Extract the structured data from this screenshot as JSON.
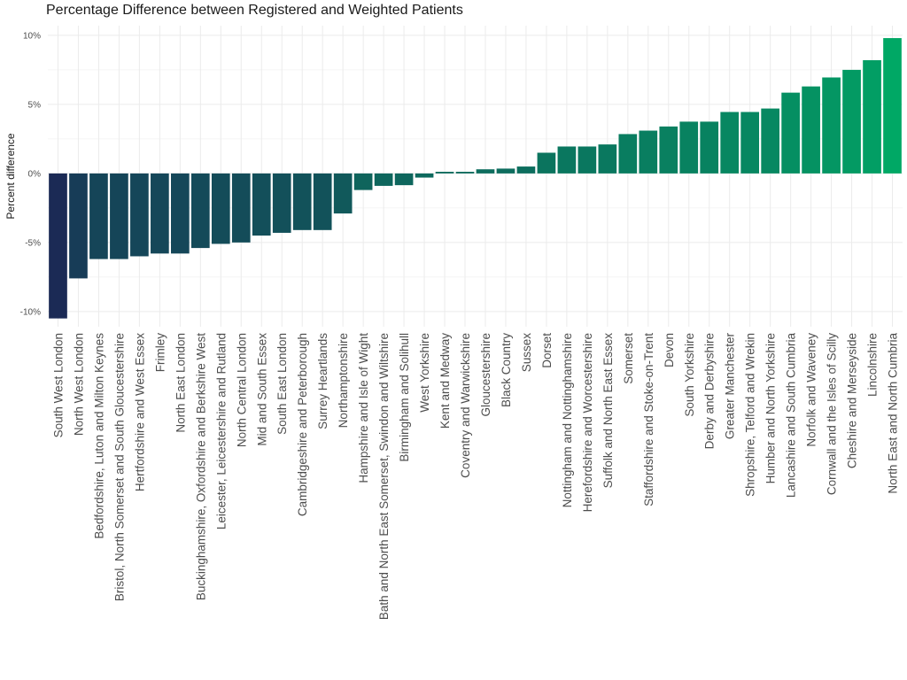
{
  "chart_data": {
    "type": "bar",
    "title": "Percentage Difference between Registered and Weighted Patients",
    "xlabel": "",
    "ylabel": "Percent difference",
    "ylim": [
      -11.1,
      10.7
    ],
    "yticks": [
      -10,
      -5,
      0,
      5,
      10
    ],
    "ytick_labels": [
      "-10%",
      "-5%",
      "0%",
      "5%",
      "10%"
    ],
    "grid": true,
    "legend": "none",
    "color_low": "#1b2a55",
    "color_high": "#00a865",
    "categories": [
      "South West London",
      "North West London",
      "Bedfordshire, Luton and Milton Keynes",
      "Bristol, North Somerset and South Gloucestershire",
      "Hertfordshire and West Essex",
      "Frimley",
      "North East London",
      "Buckinghamshire, Oxfordshire and Berkshire West",
      "Leicester, Leicestershire and Rutland",
      "North Central London",
      "Mid and South Essex",
      "South East London",
      "Cambridgeshire and Peterborough",
      "Surrey Heartlands",
      "Northamptonshire",
      "Hampshire and Isle of Wight",
      "Bath and North East Somerset, Swindon and Wiltshire",
      "Birmingham and Solihull",
      "West Yorkshire",
      "Kent and Medway",
      "Coventry and Warwickshire",
      "Gloucestershire",
      "Black Country",
      "Sussex",
      "Dorset",
      "Nottingham and Nottinghamshire",
      "Herefordshire and Worcestershire",
      "Suffolk and North East Essex",
      "Somerset",
      "Staffordshire and Stoke-on-Trent",
      "Devon",
      "South Yorkshire",
      "Derby and Derbyshire",
      "Greater Manchester",
      "Shropshire, Telford and Wrekin",
      "Humber and North Yorkshire",
      "Lancashire and South Cumbria",
      "Norfolk and Waveney",
      "Cornwall and the Isles of Scilly",
      "Cheshire and Merseyside",
      "Lincolnshire",
      "North East and North Cumbria"
    ],
    "values": [
      -10.5,
      -7.6,
      -6.2,
      -6.2,
      -6.0,
      -5.8,
      -5.8,
      -5.4,
      -5.1,
      -5.0,
      -4.5,
      -4.3,
      -4.1,
      -4.1,
      -2.9,
      -1.2,
      -0.9,
      -0.85,
      -0.3,
      0.12,
      0.12,
      0.3,
      0.35,
      0.5,
      1.5,
      1.95,
      1.95,
      2.1,
      2.85,
      3.1,
      3.4,
      3.75,
      3.75,
      4.45,
      4.45,
      4.7,
      5.85,
      6.3,
      6.95,
      7.5,
      8.2,
      9.8
    ]
  }
}
